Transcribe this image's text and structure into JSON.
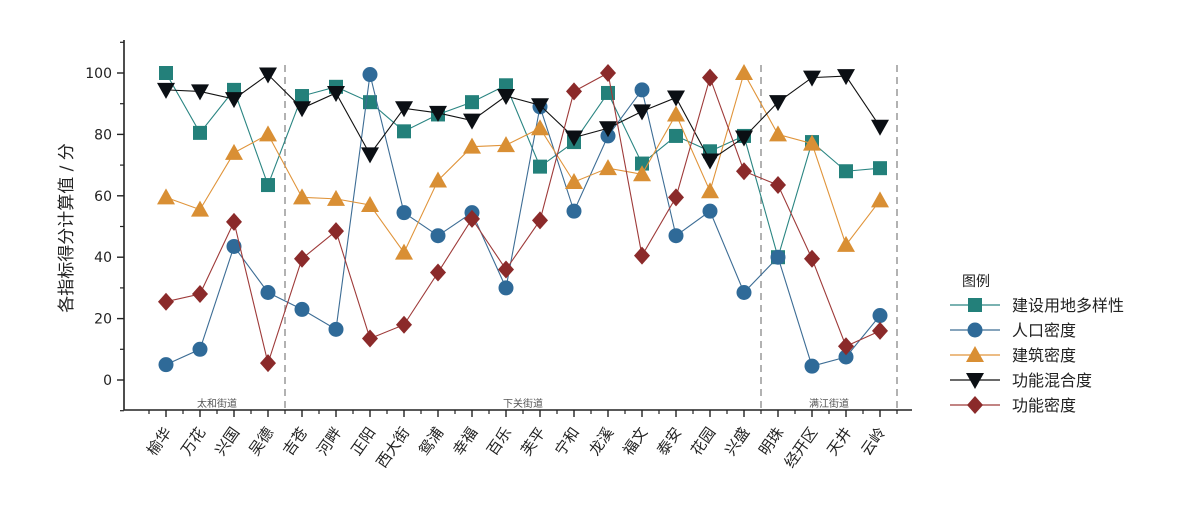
{
  "chart_data": {
    "type": "line",
    "ylabel": "各指标得分计算值 / 分",
    "ylim": [
      -10,
      110
    ],
    "yticks": [
      0,
      20,
      40,
      60,
      80,
      100
    ],
    "categories": [
      "榆华",
      "万花",
      "兴国",
      "吴德",
      "吉苍",
      "河畔",
      "正阳",
      "西大街",
      "鸳浦",
      "幸福",
      "百乐",
      "芙平",
      "宁和",
      "龙溪",
      "福文",
      "泰安",
      "花园",
      "兴盛",
      "明珠",
      "经开区",
      "天井",
      "云岭"
    ],
    "districts": [
      {
        "name": "太和街道",
        "start": 0,
        "end": 3
      },
      {
        "name": "下关街道",
        "start": 4,
        "end": 17
      },
      {
        "name": "满江街道",
        "start": 18,
        "end": 21
      }
    ],
    "legend_title": "图例",
    "legend_position": "right",
    "grid": false,
    "series": [
      {
        "name": "建设用地多样性",
        "marker": "square",
        "color": "#2a8582",
        "markerColor": "#23807a",
        "values": [
          100,
          80.5,
          94.5,
          63.5,
          92.5,
          95.5,
          90.5,
          81,
          86.5,
          90.5,
          96,
          69.5,
          77.5,
          93.5,
          70.5,
          79.5,
          74.5,
          79.5,
          40,
          77.5,
          68,
          69
        ]
      },
      {
        "name": "人口密度",
        "marker": "circle",
        "color": "#3d6d95",
        "markerColor": "#2f6a98",
        "values": [
          5,
          10,
          43.5,
          28.5,
          23,
          16.5,
          99.5,
          54.5,
          47,
          54.5,
          30,
          89,
          55,
          79.5,
          94.5,
          47,
          55,
          28.5,
          40,
          4.5,
          7.5,
          21
        ]
      },
      {
        "name": "建筑密度",
        "marker": "triangle-up",
        "color": "#e0943a",
        "markerColor": "#d98f34",
        "values": [
          59.5,
          55.5,
          74,
          80,
          59.5,
          59,
          57,
          41.5,
          65,
          76,
          76.5,
          82,
          64.5,
          69,
          67,
          86.5,
          61.5,
          100,
          80,
          77,
          44,
          58.5
        ]
      },
      {
        "name": "功能混合度",
        "marker": "triangle-down",
        "color": "#111111",
        "markerColor": "#0b0f14",
        "values": [
          94.5,
          94,
          91.5,
          99.5,
          88.5,
          93.5,
          73.5,
          88.5,
          87,
          84.5,
          92.5,
          89.5,
          79,
          82,
          87.5,
          92,
          71.5,
          79,
          90.5,
          98.5,
          99,
          82.5
        ]
      },
      {
        "name": "功能密度",
        "marker": "diamond",
        "color": "#9e3a39",
        "markerColor": "#8b2a2a",
        "values": [
          25.5,
          28,
          51.5,
          5.5,
          39.5,
          48.5,
          13.5,
          18,
          35,
          52.5,
          36,
          52,
          94,
          100,
          40.5,
          59.5,
          98.5,
          68,
          63.5,
          39.5,
          11,
          16
        ]
      }
    ]
  }
}
